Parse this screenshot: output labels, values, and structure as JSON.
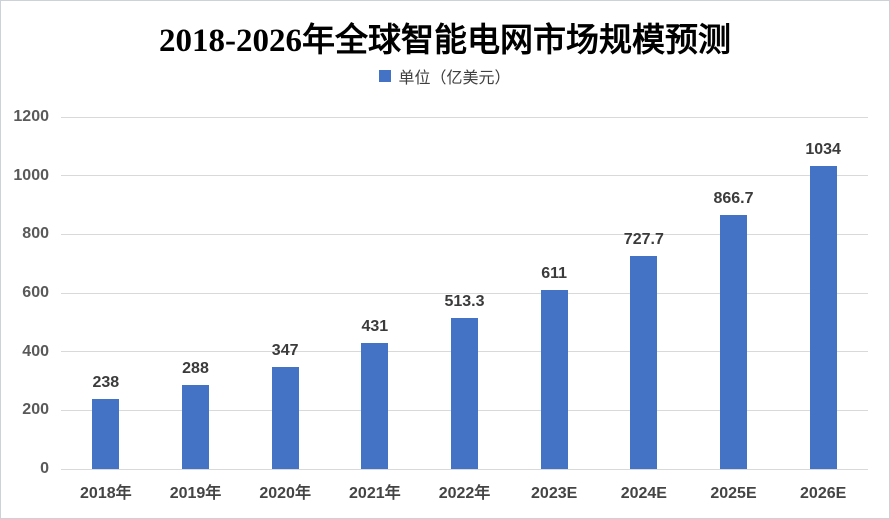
{
  "title": "2018-2026年全球智能电网市场规模预测",
  "legend": {
    "label": "单位（亿美元）",
    "marker_color": "#4472C4"
  },
  "colors": {
    "bar": "#4472C4",
    "gridline": "#D9D9D9",
    "ytick_text": "#595959",
    "xtick_text": "#444444",
    "value_text": "#3B3B3B",
    "title_text": "#000000",
    "frame_border": "#CDD1D8"
  },
  "chart_data": {
    "type": "bar",
    "title": "2018-2026年全球智能电网市场规模预测",
    "legend_entries": [
      "单位（亿美元）"
    ],
    "legend_position": "top",
    "categories": [
      "2018年",
      "2019年",
      "2020年",
      "2021年",
      "2022年",
      "2023E",
      "2024E",
      "2025E",
      "2026E"
    ],
    "values": [
      238,
      288,
      347,
      431,
      513.3,
      611,
      727.7,
      866.7,
      1034
    ],
    "xlabel": "",
    "ylabel": "",
    "ylim": [
      0,
      1200
    ],
    "yticks": [
      0,
      200,
      400,
      600,
      800,
      1000,
      1200
    ],
    "grid": true,
    "data_labels": true
  }
}
